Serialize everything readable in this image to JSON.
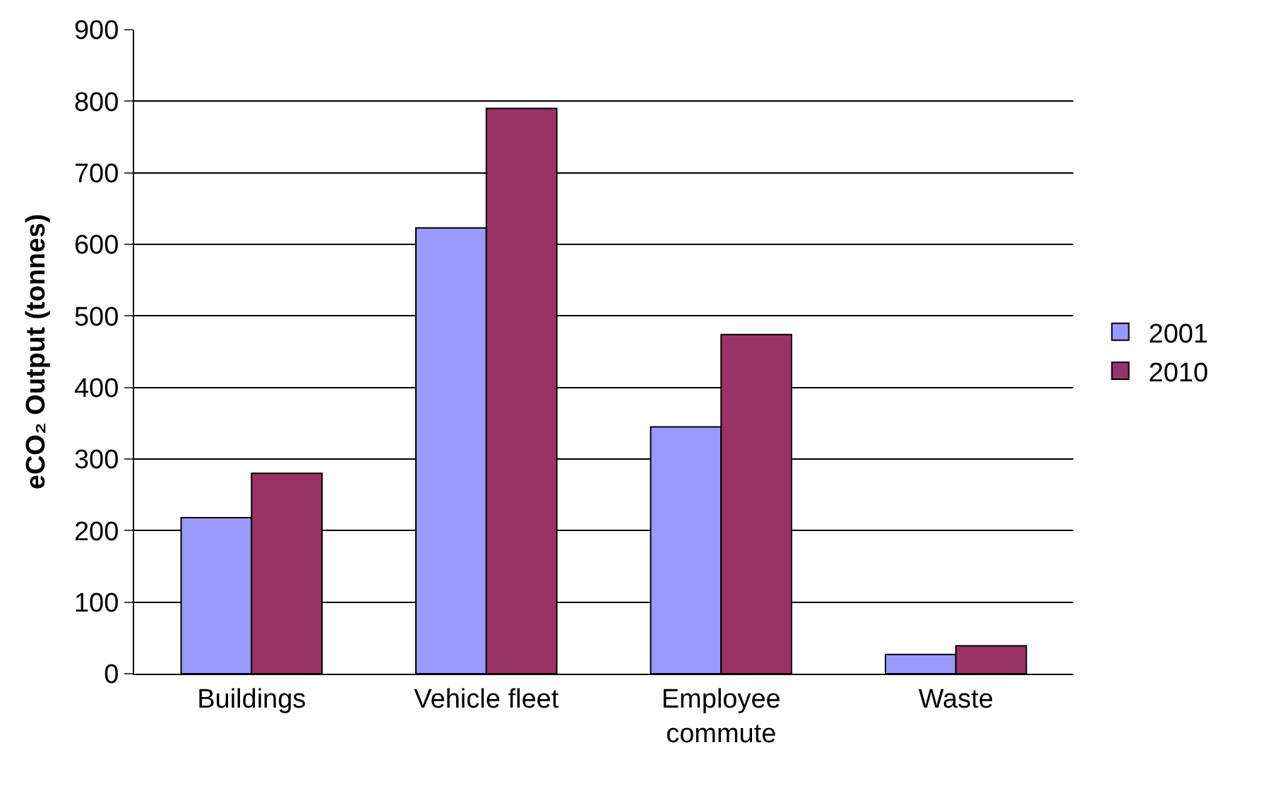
{
  "chart_data": {
    "type": "bar",
    "ylabel": "eCO₂ Output (tonnes)",
    "categories": [
      "Buildings",
      "Vehicle fleet",
      "Employee commute",
      "Waste"
    ],
    "series": [
      {
        "name": "2001",
        "color": "#9999ff",
        "values": [
          218,
          623,
          345,
          27
        ]
      },
      {
        "name": "2010",
        "color": "#993366",
        "values": [
          280,
          790,
          474,
          39
        ]
      }
    ],
    "ylim": [
      0,
      900
    ],
    "yticks": [
      0,
      100,
      200,
      300,
      400,
      500,
      600,
      700,
      800,
      900
    ],
    "grid": "y",
    "legend": "right"
  }
}
